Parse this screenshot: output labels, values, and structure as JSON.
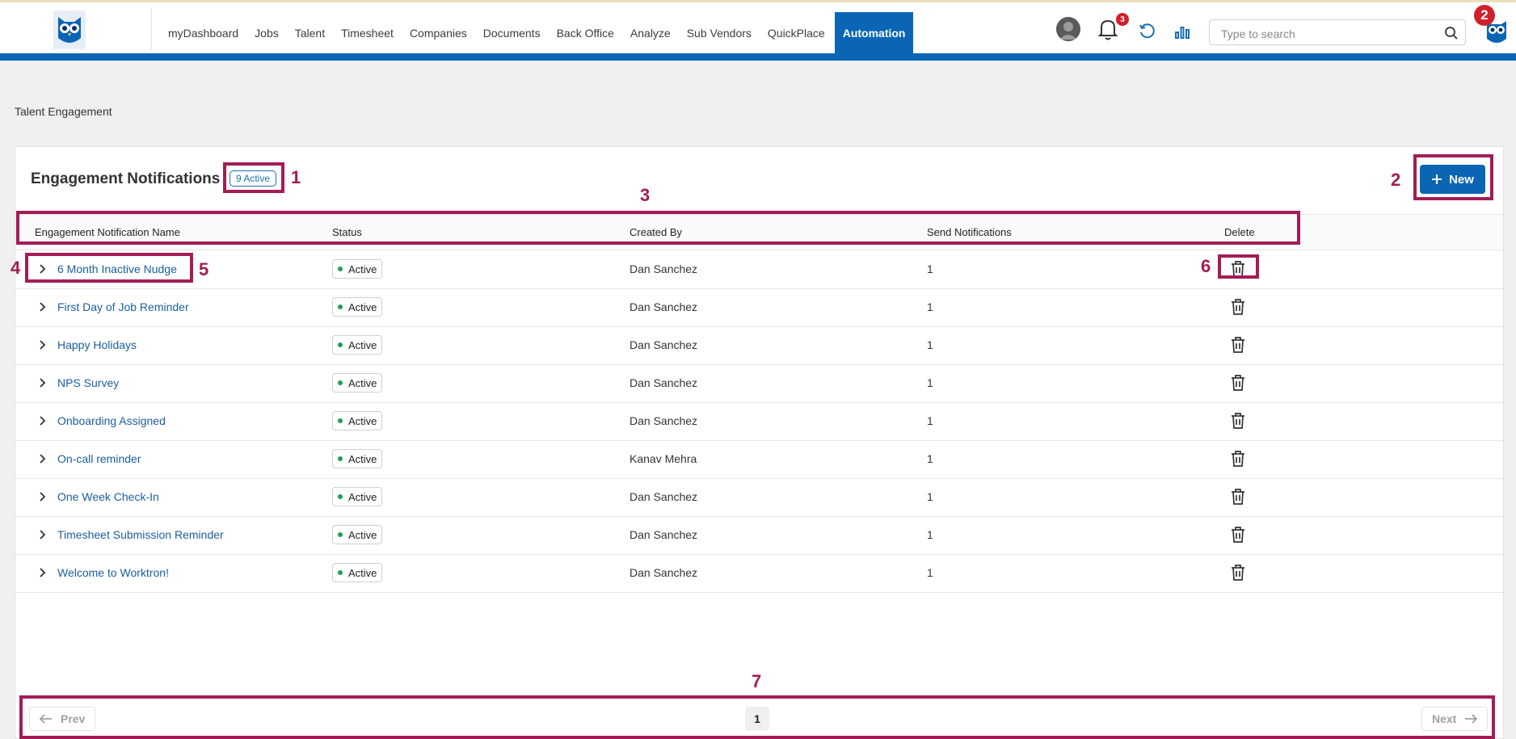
{
  "colors": {
    "brand_blue": "#0a66b5",
    "annotation": "#a31c56",
    "badge_red": "#d0202a",
    "status_green": "#1e9e5a",
    "link_blue": "#1a5e9e"
  },
  "nav": {
    "items": [
      "myDashboard",
      "Jobs",
      "Talent",
      "Timesheet",
      "Companies",
      "Documents",
      "Back Office",
      "Analyze",
      "Sub Vendors",
      "QuickPlace"
    ],
    "active": "Automation"
  },
  "header": {
    "notifications_count": "3",
    "search_placeholder": "Type to search",
    "icons": [
      "avatar",
      "bell-icon",
      "refresh-icon",
      "bar-chart-icon",
      "search-icon",
      "owl-logo"
    ]
  },
  "breadcrumb": "Talent Engagement",
  "panel": {
    "title": "Engagement Notifications",
    "active_badge": "9 Active",
    "new_label": "New"
  },
  "table": {
    "columns": [
      "Engagement Notification Name",
      "Status",
      "Created By",
      "Send Notifications",
      "Delete"
    ],
    "rows": [
      {
        "name": "6 Month Inactive Nudge",
        "status": "Active",
        "created_by": "Dan Sanchez",
        "send": "1"
      },
      {
        "name": "First Day of Job Reminder",
        "status": "Active",
        "created_by": "Dan Sanchez",
        "send": "1"
      },
      {
        "name": "Happy Holidays",
        "status": "Active",
        "created_by": "Dan Sanchez",
        "send": "1"
      },
      {
        "name": "NPS Survey",
        "status": "Active",
        "created_by": "Dan Sanchez",
        "send": "1"
      },
      {
        "name": "Onboarding Assigned",
        "status": "Active",
        "created_by": "Dan Sanchez",
        "send": "1"
      },
      {
        "name": "On-call reminder",
        "status": "Active",
        "created_by": "Kanav Mehra",
        "send": "1"
      },
      {
        "name": "One Week Check-In",
        "status": "Active",
        "created_by": "Dan Sanchez",
        "send": "1"
      },
      {
        "name": "Timesheet Submission Reminder",
        "status": "Active",
        "created_by": "Dan Sanchez",
        "send": "1"
      },
      {
        "name": "Welcome to Worktron!",
        "status": "Active",
        "created_by": "Dan Sanchez",
        "send": "1"
      }
    ]
  },
  "pagination": {
    "prev_label": "Prev",
    "next_label": "Next",
    "current_page": "1"
  },
  "annotations": {
    "active_badge": "1",
    "new_button": "2",
    "table_header": "3",
    "expand_chevron": "4",
    "notification_name": "5",
    "delete_icon": "6",
    "pagination": "7",
    "top_right_badge": "2"
  }
}
